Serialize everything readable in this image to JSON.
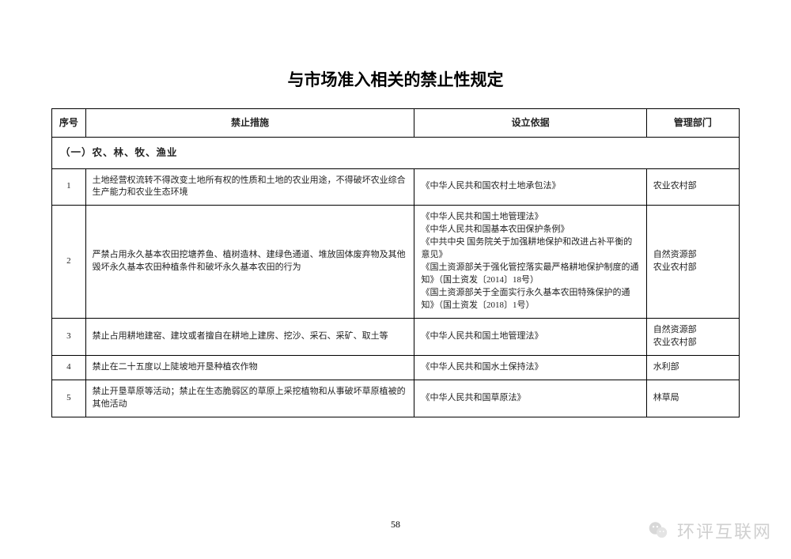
{
  "title": "与市场准入相关的禁止性规定",
  "columns": {
    "seq": "序号",
    "measure": "禁止措施",
    "basis": "设立依据",
    "dept": "管理部门"
  },
  "section": "（一）农、林、牧、渔业",
  "rows": [
    {
      "seq": "1",
      "measure": "土地经营权流转不得改变土地所有权的性质和土地的农业用途，不得破坏农业综合生产能力和农业生态环境",
      "basis": "《中华人民共和国农村土地承包法》",
      "dept": "农业农村部"
    },
    {
      "seq": "2",
      "measure": "严禁占用永久基本农田挖塘养鱼、植树造林、建绿色通道、堆放固体废弃物及其他毁坏永久基本农田种植条件和破坏永久基本农田的行为",
      "basis": "《中华人民共和国土地管理法》\n《中华人民共和国基本农田保护条例》\n《中共中央 国务院关于加强耕地保护和改进占补平衡的意见》\n《国土资源部关于强化管控落实最严格耕地保护制度的通知》（国土资发〔2014〕18号）\n《国土资源部关于全面实行永久基本农田特殊保护的通知》（国土资发〔2018〕1号）",
      "dept": "自然资源部\n农业农村部"
    },
    {
      "seq": "3",
      "measure": "禁止占用耕地建窑、建坟或者擅自在耕地上建房、挖沙、采石、采矿、取土等",
      "basis": "《中华人民共和国土地管理法》",
      "dept": "自然资源部\n农业农村部"
    },
    {
      "seq": "4",
      "measure": "禁止在二十五度以上陡坡地开垦种植农作物",
      "basis": "《中华人民共和国水土保持法》",
      "dept": "水利部"
    },
    {
      "seq": "5",
      "measure": "禁止开垦草原等活动；禁止在生态脆弱区的草原上采挖植物和从事破坏草原植被的其他活动",
      "basis": "《中华人民共和国草原法》",
      "dept": "林草局"
    }
  ],
  "pageNumber": "58",
  "watermark": "环评互联网",
  "colors": {
    "text": "#222222",
    "border": "#000000",
    "watermark": "#d0d0d0",
    "background": "#ffffff"
  },
  "col_widths": {
    "seq": 40,
    "measure": 390,
    "basis": 275,
    "dept": 110
  }
}
